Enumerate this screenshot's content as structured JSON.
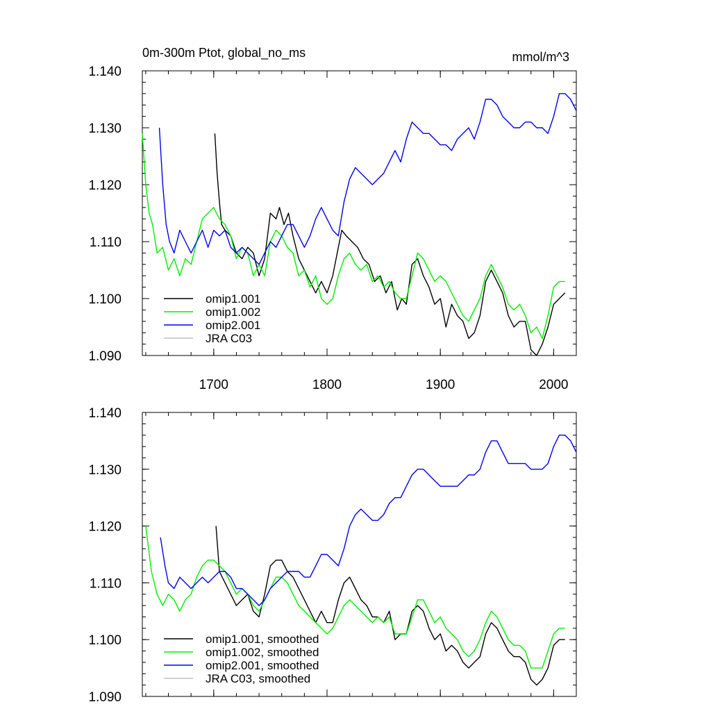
{
  "figure": {
    "title_left": "0m-300m Ptot, global_no_ms",
    "title_right": "mmol/m^3"
  },
  "chart_data": [
    {
      "type": "line",
      "panel": "raw",
      "xlim": [
        1637,
        2020
      ],
      "ylim": [
        1.09,
        1.14
      ],
      "yticks": [
        1.09,
        1.1,
        1.11,
        1.12,
        1.13,
        1.14
      ],
      "ytick_labels": [
        "1.090",
        "1.100",
        "1.110",
        "1.120",
        "1.130",
        "1.140"
      ],
      "xticks": [
        1700,
        1800,
        1900,
        2000
      ],
      "xtick_labels": [
        "1700",
        "1800",
        "1900",
        "2000"
      ],
      "legend_position": "bottom-left",
      "series": [
        {
          "name": "omip1.001",
          "color": "#000000",
          "x": [
            1701,
            1703,
            1705,
            1707,
            1710,
            1715,
            1720,
            1725,
            1730,
            1735,
            1740,
            1745,
            1750,
            1755,
            1758,
            1762,
            1766,
            1770,
            1775,
            1780,
            1785,
            1790,
            1795,
            1800,
            1805,
            1810,
            1813,
            1817,
            1822,
            1827,
            1832,
            1837,
            1842,
            1847,
            1852,
            1857,
            1862,
            1866,
            1870,
            1875,
            1880,
            1885,
            1890,
            1895,
            1900,
            1905,
            1910,
            1915,
            1920,
            1925,
            1930,
            1935,
            1940,
            1945,
            1950,
            1955,
            1960,
            1965,
            1970,
            1975,
            1980,
            1985,
            1990,
            1995,
            2000,
            2005,
            2010
          ],
          "y": [
            1.129,
            1.122,
            1.117,
            1.113,
            1.112,
            1.111,
            1.108,
            1.107,
            1.109,
            1.108,
            1.104,
            1.107,
            1.115,
            1.114,
            1.116,
            1.113,
            1.115,
            1.111,
            1.107,
            1.105,
            1.103,
            1.101,
            1.103,
            1.101,
            1.104,
            1.109,
            1.112,
            1.111,
            1.11,
            1.109,
            1.107,
            1.106,
            1.103,
            1.104,
            1.101,
            1.103,
            1.098,
            1.1,
            1.099,
            1.106,
            1.107,
            1.104,
            1.102,
            1.099,
            1.1,
            1.095,
            1.099,
            1.097,
            1.096,
            1.093,
            1.094,
            1.097,
            1.103,
            1.105,
            1.103,
            1.101,
            1.097,
            1.095,
            1.096,
            1.096,
            1.091,
            1.09,
            1.092,
            1.095,
            1.099,
            1.1,
            1.101
          ]
        },
        {
          "name": "omip1.002",
          "color": "#00ee00",
          "x": [
            1637,
            1640,
            1643,
            1646,
            1650,
            1655,
            1660,
            1665,
            1670,
            1675,
            1680,
            1685,
            1690,
            1695,
            1700,
            1705,
            1710,
            1715,
            1720,
            1725,
            1730,
            1735,
            1740,
            1745,
            1750,
            1755,
            1760,
            1765,
            1770,
            1775,
            1780,
            1785,
            1790,
            1795,
            1800,
            1805,
            1810,
            1815,
            1820,
            1825,
            1830,
            1835,
            1840,
            1845,
            1850,
            1855,
            1860,
            1865,
            1870,
            1875,
            1880,
            1885,
            1890,
            1895,
            1900,
            1905,
            1910,
            1915,
            1920,
            1925,
            1930,
            1935,
            1940,
            1945,
            1950,
            1955,
            1960,
            1965,
            1970,
            1975,
            1980,
            1985,
            1990,
            1995,
            2000,
            2005,
            2010
          ],
          "y": [
            1.129,
            1.12,
            1.115,
            1.113,
            1.108,
            1.109,
            1.105,
            1.107,
            1.104,
            1.107,
            1.106,
            1.11,
            1.114,
            1.115,
            1.116,
            1.114,
            1.113,
            1.111,
            1.107,
            1.109,
            1.108,
            1.104,
            1.106,
            1.104,
            1.11,
            1.112,
            1.111,
            1.109,
            1.108,
            1.104,
            1.105,
            1.102,
            1.104,
            1.1,
            1.099,
            1.1,
            1.104,
            1.107,
            1.108,
            1.106,
            1.105,
            1.106,
            1.103,
            1.104,
            1.102,
            1.103,
            1.101,
            1.1,
            1.1,
            1.104,
            1.108,
            1.107,
            1.105,
            1.103,
            1.104,
            1.103,
            1.101,
            1.099,
            1.097,
            1.096,
            1.098,
            1.1,
            1.104,
            1.106,
            1.104,
            1.102,
            1.099,
            1.098,
            1.099,
            1.097,
            1.094,
            1.095,
            1.093,
            1.097,
            1.102,
            1.103,
            1.103
          ]
        },
        {
          "name": "omip2.001",
          "color": "#0000ee",
          "x": [
            1652,
            1655,
            1658,
            1661,
            1665,
            1670,
            1675,
            1680,
            1685,
            1690,
            1695,
            1700,
            1705,
            1710,
            1715,
            1720,
            1725,
            1730,
            1735,
            1740,
            1745,
            1750,
            1755,
            1760,
            1765,
            1770,
            1775,
            1780,
            1785,
            1790,
            1795,
            1800,
            1805,
            1810,
            1815,
            1820,
            1825,
            1830,
            1835,
            1840,
            1845,
            1850,
            1855,
            1860,
            1865,
            1870,
            1875,
            1880,
            1885,
            1890,
            1895,
            1900,
            1905,
            1910,
            1915,
            1920,
            1925,
            1930,
            1935,
            1940,
            1945,
            1950,
            1955,
            1960,
            1965,
            1970,
            1975,
            1980,
            1985,
            1990,
            1995,
            2000,
            2005,
            2010,
            2015,
            2020
          ],
          "y": [
            1.13,
            1.12,
            1.113,
            1.11,
            1.108,
            1.112,
            1.11,
            1.108,
            1.11,
            1.112,
            1.109,
            1.112,
            1.111,
            1.112,
            1.109,
            1.108,
            1.109,
            1.108,
            1.107,
            1.106,
            1.108,
            1.11,
            1.109,
            1.111,
            1.113,
            1.113,
            1.111,
            1.109,
            1.111,
            1.114,
            1.116,
            1.114,
            1.112,
            1.111,
            1.117,
            1.121,
            1.123,
            1.122,
            1.121,
            1.12,
            1.121,
            1.122,
            1.124,
            1.126,
            1.124,
            1.128,
            1.131,
            1.13,
            1.129,
            1.129,
            1.128,
            1.127,
            1.127,
            1.126,
            1.128,
            1.129,
            1.13,
            1.128,
            1.131,
            1.135,
            1.135,
            1.134,
            1.132,
            1.131,
            1.13,
            1.13,
            1.131,
            1.131,
            1.13,
            1.13,
            1.129,
            1.132,
            1.136,
            1.136,
            1.135,
            1.133
          ]
        },
        {
          "name": "JRA C03",
          "color": "#c0c0c0",
          "x": [],
          "y": []
        }
      ]
    },
    {
      "type": "line",
      "panel": "smoothed",
      "xlim": [
        1637,
        2020
      ],
      "ylim": [
        1.09,
        1.14
      ],
      "yticks": [
        1.09,
        1.1,
        1.11,
        1.12,
        1.13,
        1.14
      ],
      "ytick_labels": [
        "1.090",
        "1.100",
        "1.110",
        "1.120",
        "1.130",
        "1.140"
      ],
      "xticks": [
        1700,
        1800,
        1900,
        2000
      ],
      "xtick_labels": [],
      "legend_position": "bottom-left",
      "series": [
        {
          "name": "omip1.001, smoothed",
          "color": "#000000",
          "x": [
            1702,
            1705,
            1710,
            1715,
            1720,
            1725,
            1730,
            1735,
            1740,
            1745,
            1750,
            1755,
            1760,
            1765,
            1770,
            1775,
            1780,
            1785,
            1790,
            1795,
            1800,
            1805,
            1810,
            1815,
            1820,
            1825,
            1830,
            1835,
            1840,
            1845,
            1850,
            1855,
            1860,
            1865,
            1870,
            1875,
            1880,
            1885,
            1890,
            1895,
            1900,
            1905,
            1910,
            1915,
            1920,
            1925,
            1930,
            1935,
            1940,
            1945,
            1950,
            1955,
            1960,
            1965,
            1970,
            1975,
            1980,
            1985,
            1990,
            1995,
            2000,
            2005,
            2010
          ],
          "y": [
            1.12,
            1.112,
            1.11,
            1.108,
            1.106,
            1.107,
            1.108,
            1.105,
            1.104,
            1.108,
            1.113,
            1.114,
            1.114,
            1.112,
            1.111,
            1.109,
            1.107,
            1.105,
            1.103,
            1.105,
            1.103,
            1.103,
            1.107,
            1.11,
            1.111,
            1.109,
            1.107,
            1.106,
            1.104,
            1.104,
            1.103,
            1.105,
            1.1,
            1.101,
            1.101,
            1.105,
            1.106,
            1.105,
            1.102,
            1.1,
            1.101,
            1.098,
            1.099,
            1.098,
            1.096,
            1.095,
            1.096,
            1.097,
            1.101,
            1.103,
            1.102,
            1.1,
            1.098,
            1.097,
            1.097,
            1.096,
            1.093,
            1.092,
            1.093,
            1.095,
            1.099,
            1.1,
            1.1
          ]
        },
        {
          "name": "omip1.002, smoothed",
          "color": "#00ee00",
          "x": [
            1640,
            1645,
            1650,
            1655,
            1660,
            1665,
            1670,
            1675,
            1680,
            1685,
            1690,
            1695,
            1700,
            1705,
            1710,
            1715,
            1720,
            1725,
            1730,
            1735,
            1740,
            1745,
            1750,
            1755,
            1760,
            1765,
            1770,
            1775,
            1780,
            1785,
            1790,
            1795,
            1800,
            1805,
            1810,
            1815,
            1820,
            1825,
            1830,
            1835,
            1840,
            1845,
            1850,
            1855,
            1860,
            1865,
            1870,
            1875,
            1880,
            1885,
            1890,
            1895,
            1900,
            1905,
            1910,
            1915,
            1920,
            1925,
            1930,
            1935,
            1940,
            1945,
            1950,
            1955,
            1960,
            1965,
            1970,
            1975,
            1980,
            1985,
            1990,
            1995,
            2000,
            2005,
            2010
          ],
          "y": [
            1.12,
            1.112,
            1.108,
            1.106,
            1.108,
            1.107,
            1.105,
            1.107,
            1.108,
            1.111,
            1.113,
            1.114,
            1.114,
            1.113,
            1.112,
            1.11,
            1.108,
            1.109,
            1.108,
            1.106,
            1.105,
            1.107,
            1.109,
            1.111,
            1.111,
            1.11,
            1.108,
            1.106,
            1.105,
            1.104,
            1.103,
            1.102,
            1.101,
            1.102,
            1.104,
            1.106,
            1.107,
            1.106,
            1.105,
            1.104,
            1.103,
            1.104,
            1.103,
            1.104,
            1.101,
            1.101,
            1.101,
            1.104,
            1.107,
            1.107,
            1.105,
            1.103,
            1.104,
            1.102,
            1.101,
            1.1,
            1.098,
            1.097,
            1.098,
            1.1,
            1.103,
            1.105,
            1.104,
            1.102,
            1.1,
            1.099,
            1.099,
            1.098,
            1.095,
            1.095,
            1.095,
            1.098,
            1.101,
            1.102,
            1.102
          ]
        },
        {
          "name": "omip2.001, smoothed",
          "color": "#0000ee",
          "x": [
            1653,
            1657,
            1660,
            1665,
            1670,
            1675,
            1680,
            1685,
            1690,
            1695,
            1700,
            1705,
            1710,
            1715,
            1720,
            1725,
            1730,
            1735,
            1740,
            1745,
            1750,
            1755,
            1760,
            1765,
            1770,
            1775,
            1780,
            1785,
            1790,
            1795,
            1800,
            1805,
            1810,
            1815,
            1820,
            1825,
            1830,
            1835,
            1840,
            1845,
            1850,
            1855,
            1860,
            1865,
            1870,
            1875,
            1880,
            1885,
            1890,
            1895,
            1900,
            1905,
            1910,
            1915,
            1920,
            1925,
            1930,
            1935,
            1940,
            1945,
            1950,
            1955,
            1960,
            1965,
            1970,
            1975,
            1980,
            1985,
            1990,
            1995,
            2000,
            2005,
            2010,
            2015,
            2020
          ],
          "y": [
            1.118,
            1.113,
            1.11,
            1.109,
            1.111,
            1.11,
            1.109,
            1.11,
            1.111,
            1.11,
            1.111,
            1.112,
            1.112,
            1.111,
            1.109,
            1.109,
            1.108,
            1.107,
            1.106,
            1.107,
            1.109,
            1.11,
            1.111,
            1.112,
            1.112,
            1.112,
            1.111,
            1.111,
            1.113,
            1.115,
            1.115,
            1.114,
            1.113,
            1.116,
            1.12,
            1.122,
            1.123,
            1.122,
            1.121,
            1.121,
            1.122,
            1.124,
            1.125,
            1.125,
            1.127,
            1.129,
            1.13,
            1.13,
            1.129,
            1.128,
            1.127,
            1.127,
            1.127,
            1.127,
            1.128,
            1.129,
            1.129,
            1.13,
            1.133,
            1.135,
            1.135,
            1.133,
            1.131,
            1.131,
            1.131,
            1.131,
            1.13,
            1.13,
            1.13,
            1.131,
            1.134,
            1.136,
            1.136,
            1.135,
            1.133
          ]
        },
        {
          "name": "JRA C03, smoothed",
          "color": "#c0c0c0",
          "x": [],
          "y": []
        }
      ]
    }
  ]
}
